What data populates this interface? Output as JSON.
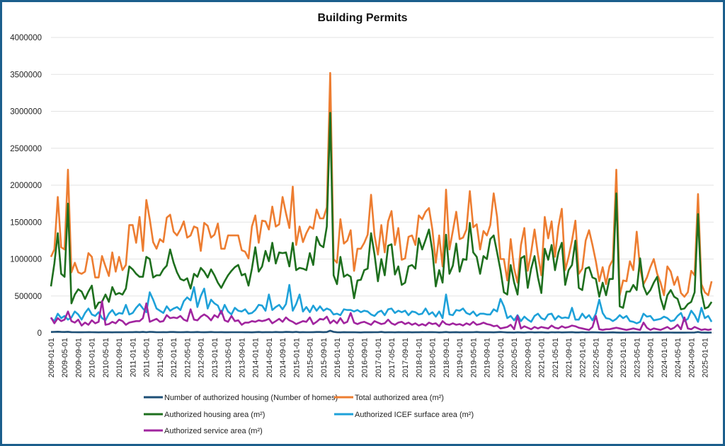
{
  "chart_data": {
    "type": "line",
    "title": "Building Permits",
    "xlabel": "",
    "ylabel": "",
    "frequency": "monthly",
    "x_range": [
      "2009-01-01",
      "2025-03-01"
    ],
    "ylim": [
      0,
      4000000
    ],
    "y_ticks": [
      "0",
      "500000",
      "1000000",
      "1500000",
      "2000000",
      "2500000",
      "3000000",
      "3500000",
      "4000000"
    ],
    "x_tick_labels": [
      "2009-01-01",
      "2009-05-01",
      "2009-09-01",
      "2010-01-01",
      "2010-05-01",
      "2010-09-01",
      "2011-01-01",
      "2011-05-01",
      "2011-09-01",
      "2012-01-01",
      "2012-05-01",
      "2012-09-01",
      "2013-01-01",
      "2013-05-01",
      "2013-09-01",
      "2014-01-01",
      "2014-05-01",
      "2014-09-01",
      "2015-01-01",
      "2015-05-01",
      "2015-09-01",
      "2016-01-01",
      "2016-05-01",
      "2016-09-01",
      "2017-01-01",
      "2017-05-01",
      "2017-09-01",
      "2018-01-01",
      "2018-05-01",
      "2018-09-01",
      "2019-01-01",
      "2019-05-01",
      "2019-09-01",
      "2020-01-01",
      "2020-05-01",
      "2020-09-01",
      "2021-01-01",
      "2021-05-01",
      "2021-09-01",
      "2022-01-01",
      "2022-05-01",
      "2022-09-01",
      "2023-01-01",
      "2023-05-01",
      "2023-09-01",
      "2024-01-01",
      "2024-05-01",
      "2024-09-01",
      "2025-01-01"
    ],
    "grid": true,
    "legend_position": "bottom",
    "series": [
      {
        "name": "Number of authorized housing (Number of homes)",
        "color": "#1d4f76",
        "values": [
          12000,
          14000,
          16000,
          13000,
          12000,
          15000,
          11000,
          10000,
          9000,
          9000,
          10000,
          11000,
          10000,
          9000,
          8000,
          9000,
          10000,
          9000,
          8000,
          10000,
          9000,
          9000,
          10000,
          11000,
          11000,
          12000,
          11000,
          13000,
          10000,
          14000,
          12000,
          10000,
          10000,
          11000,
          10000,
          12000,
          12000,
          11000,
          10000,
          11000,
          12000,
          10000,
          11000,
          12000,
          10000,
          9000,
          11000,
          12000,
          10000,
          10000,
          11000,
          9000,
          9000,
          10000,
          10000,
          10000,
          10000,
          9000,
          9000,
          8000,
          11000,
          12000,
          9000,
          11000,
          11000,
          10000,
          12000,
          11000,
          11000,
          13000,
          12000,
          11000,
          14000,
          9000,
          11000,
          10000,
          10000,
          11000,
          12000,
          12000,
          11000,
          12000,
          30000,
          14000,
          9000,
          8000,
          11000,
          9000,
          9000,
          10000,
          8000,
          7000,
          9000,
          9000,
          9000,
          10000,
          10000,
          13000,
          8000,
          9000,
          10000,
          8000,
          11000,
          9000,
          9000,
          11000,
          8000,
          9000,
          9000,
          11000,
          10000,
          11000,
          11000,
          10000,
          7000,
          9000,
          12000,
          8000,
          9000,
          11000,
          8000,
          10000,
          9000,
          9000,
          10000,
          12000,
          9000,
          10000,
          9000,
          9000,
          8000,
          11000,
          12000,
          10000,
          7000,
          7000,
          6000,
          9000,
          7000,
          6000,
          9000,
          10000,
          7000,
          8000,
          9000,
          7000,
          6000,
          10000,
          8000,
          10000,
          7000,
          8000,
          9000,
          11000,
          7000,
          7000,
          10000,
          7000,
          8000,
          9000,
          8000,
          7000,
          6000,
          5000,
          7000,
          8000,
          6000,
          4000,
          4000,
          5000,
          5000,
          6000,
          5000,
          5000,
          7000,
          6000,
          5000,
          5000,
          6000,
          6000,
          5000,
          6000,
          5000,
          4000,
          5000,
          4000,
          4000,
          5000,
          5000,
          6000,
          12000,
          5000,
          4000,
          4000,
          5000
        ]
      },
      {
        "name": "Total authorized area (m²)",
        "color": "#ed7d31",
        "values": [
          1030000,
          1130000,
          1840000,
          1160000,
          1130000,
          2210000,
          820000,
          950000,
          820000,
          800000,
          830000,
          1080000,
          1030000,
          750000,
          750000,
          1040000,
          900000,
          770000,
          1090000,
          830000,
          1030000,
          850000,
          920000,
          1460000,
          1460000,
          1220000,
          1570000,
          1110000,
          1800000,
          1540000,
          1230000,
          1140000,
          1270000,
          1230000,
          1560000,
          1600000,
          1370000,
          1320000,
          1400000,
          1510000,
          1290000,
          1320000,
          1440000,
          1420000,
          1110000,
          1490000,
          1450000,
          1290000,
          1330000,
          1480000,
          1140000,
          1140000,
          1320000,
          1320000,
          1320000,
          1320000,
          1120000,
          1100000,
          1010000,
          1440000,
          1590000,
          1220000,
          1520000,
          1510000,
          1400000,
          1710000,
          1440000,
          1470000,
          1840000,
          1620000,
          1420000,
          1980000,
          1190000,
          1440000,
          1230000,
          1350000,
          1440000,
          1410000,
          1670000,
          1550000,
          1550000,
          1700000,
          3520000,
          1000000,
          950000,
          1540000,
          1210000,
          1250000,
          1390000,
          840000,
          1140000,
          1140000,
          1220000,
          1330000,
          1870000,
          1320000,
          1060000,
          1460000,
          1090000,
          1510000,
          1650000,
          1190000,
          1420000,
          990000,
          1010000,
          1300000,
          1320000,
          1190000,
          1590000,
          1540000,
          1640000,
          1690000,
          1400000,
          950000,
          1320000,
          900000,
          1940000,
          1130000,
          1380000,
          1640000,
          1270000,
          1290000,
          1400000,
          1920000,
          1430000,
          1470000,
          1130000,
          1380000,
          1320000,
          1460000,
          1890000,
          1570000,
          1000000,
          1000000,
          710000,
          1270000,
          870000,
          680000,
          1190000,
          1420000,
          840000,
          1090000,
          1400000,
          1060000,
          780000,
          1570000,
          1280000,
          1510000,
          1030000,
          1440000,
          1680000,
          850000,
          1030000,
          1250000,
          1520000,
          800000,
          870000,
          1250000,
          1390000,
          1190000,
          970000,
          700000,
          890000,
          660000,
          900000,
          990000,
          2210000,
          510000,
          710000,
          700000,
          970000,
          850000,
          1370000,
          870000,
          660000,
          750000,
          890000,
          1000000,
          800000,
          680000,
          510000,
          900000,
          830000,
          650000,
          760000,
          540000,
          490000,
          550000,
          840000,
          780000,
          1880000,
          660000,
          550000,
          510000,
          700000
        ]
      },
      {
        "name": "Authorized housing area (m²)",
        "color": "#1e6f1e",
        "values": [
          630000,
          940000,
          1350000,
          800000,
          760000,
          1750000,
          400000,
          520000,
          590000,
          560000,
          460000,
          560000,
          640000,
          330000,
          410000,
          420000,
          520000,
          420000,
          620000,
          520000,
          540000,
          520000,
          600000,
          900000,
          860000,
          800000,
          760000,
          760000,
          1030000,
          1000000,
          750000,
          780000,
          780000,
          860000,
          910000,
          1130000,
          950000,
          820000,
          730000,
          710000,
          740000,
          600000,
          800000,
          760000,
          880000,
          830000,
          750000,
          860000,
          780000,
          680000,
          610000,
          700000,
          780000,
          840000,
          890000,
          920000,
          780000,
          800000,
          640000,
          870000,
          1160000,
          830000,
          900000,
          1110000,
          970000,
          1220000,
          940000,
          1090000,
          1080000,
          1090000,
          900000,
          1220000,
          850000,
          880000,
          870000,
          850000,
          1080000,
          920000,
          1300000,
          1190000,
          1160000,
          1440000,
          2980000,
          780000,
          660000,
          1030000,
          760000,
          790000,
          760000,
          470000,
          710000,
          720000,
          850000,
          870000,
          1350000,
          1060000,
          700000,
          1000000,
          780000,
          1180000,
          1200000,
          790000,
          900000,
          650000,
          680000,
          900000,
          920000,
          870000,
          1280000,
          1130000,
          1260000,
          1400000,
          1110000,
          630000,
          850000,
          680000,
          1330000,
          800000,
          910000,
          1210000,
          830000,
          1000000,
          990000,
          1490000,
          1090000,
          1030000,
          800000,
          1040000,
          1000000,
          1270000,
          1320000,
          1090000,
          850000,
          550000,
          520000,
          920000,
          680000,
          520000,
          1010000,
          1040000,
          610000,
          870000,
          1040000,
          750000,
          540000,
          1140000,
          990000,
          1190000,
          850000,
          1090000,
          1220000,
          650000,
          850000,
          920000,
          1250000,
          610000,
          580000,
          870000,
          890000,
          750000,
          730000,
          490000,
          680000,
          510000,
          730000,
          730000,
          1890000,
          360000,
          340000,
          560000,
          560000,
          650000,
          580000,
          1010000,
          630000,
          520000,
          580000,
          680000,
          760000,
          470000,
          320000,
          510000,
          580000,
          490000,
          460000,
          320000,
          330000,
          390000,
          420000,
          550000,
          1610000,
          550000,
          330000,
          350000,
          420000
        ]
      },
      {
        "name": "Authorized ICEF surface area (m²)",
        "color": "#1ea1d9",
        "values": [
          200000,
          160000,
          260000,
          200000,
          230000,
          180000,
          210000,
          290000,
          250000,
          180000,
          270000,
          330000,
          250000,
          230000,
          280000,
          200000,
          170000,
          260000,
          310000,
          240000,
          270000,
          260000,
          380000,
          250000,
          270000,
          340000,
          390000,
          330000,
          280000,
          550000,
          450000,
          330000,
          300000,
          270000,
          360000,
          300000,
          330000,
          350000,
          310000,
          430000,
          480000,
          440000,
          620000,
          350000,
          500000,
          600000,
          330000,
          450000,
          400000,
          370000,
          260000,
          380000,
          290000,
          250000,
          340000,
          300000,
          290000,
          320000,
          260000,
          270000,
          310000,
          380000,
          370000,
          300000,
          520000,
          310000,
          350000,
          380000,
          320000,
          390000,
          650000,
          300000,
          390000,
          520000,
          290000,
          350000,
          280000,
          370000,
          300000,
          360000,
          300000,
          330000,
          310000,
          250000,
          260000,
          240000,
          320000,
          310000,
          310000,
          290000,
          310000,
          280000,
          300000,
          290000,
          250000,
          230000,
          280000,
          300000,
          240000,
          320000,
          330000,
          270000,
          300000,
          280000,
          300000,
          240000,
          290000,
          280000,
          250000,
          260000,
          330000,
          250000,
          280000,
          220000,
          290000,
          200000,
          520000,
          250000,
          240000,
          310000,
          300000,
          330000,
          270000,
          250000,
          290000,
          230000,
          260000,
          260000,
          250000,
          250000,
          320000,
          290000,
          460000,
          360000,
          200000,
          230000,
          170000,
          240000,
          160000,
          220000,
          180000,
          150000,
          230000,
          260000,
          200000,
          180000,
          250000,
          260000,
          180000,
          230000,
          200000,
          210000,
          200000,
          340000,
          180000,
          180000,
          260000,
          200000,
          240000,
          170000,
          260000,
          450000,
          270000,
          200000,
          190000,
          160000,
          190000,
          240000,
          200000,
          230000,
          160000,
          150000,
          130000,
          150000,
          260000,
          220000,
          230000,
          170000,
          180000,
          190000,
          220000,
          200000,
          160000,
          170000,
          230000,
          270000,
          160000,
          190000,
          300000,
          240000,
          150000,
          340000,
          200000,
          230000,
          150000
        ]
      },
      {
        "name": "Authorized service area (m²)",
        "color": "#a1259f",
        "values": [
          210000,
          130000,
          200000,
          160000,
          180000,
          290000,
          160000,
          140000,
          180000,
          100000,
          140000,
          110000,
          170000,
          130000,
          150000,
          430000,
          110000,
          120000,
          150000,
          130000,
          180000,
          160000,
          110000,
          140000,
          150000,
          160000,
          160000,
          200000,
          400000,
          150000,
          170000,
          190000,
          150000,
          160000,
          240000,
          200000,
          210000,
          200000,
          230000,
          180000,
          160000,
          320000,
          180000,
          170000,
          220000,
          250000,
          220000,
          170000,
          240000,
          210000,
          300000,
          170000,
          150000,
          230000,
          160000,
          170000,
          110000,
          140000,
          140000,
          160000,
          150000,
          170000,
          160000,
          170000,
          190000,
          130000,
          160000,
          190000,
          150000,
          210000,
          170000,
          150000,
          120000,
          140000,
          160000,
          150000,
          210000,
          120000,
          150000,
          190000,
          180000,
          220000,
          130000,
          170000,
          130000,
          200000,
          130000,
          150000,
          270000,
          140000,
          120000,
          140000,
          150000,
          130000,
          110000,
          160000,
          140000,
          120000,
          130000,
          180000,
          130000,
          110000,
          140000,
          150000,
          120000,
          140000,
          110000,
          130000,
          100000,
          120000,
          100000,
          140000,
          120000,
          130000,
          90000,
          160000,
          120000,
          110000,
          130000,
          110000,
          120000,
          100000,
          130000,
          110000,
          150000,
          110000,
          120000,
          140000,
          120000,
          110000,
          90000,
          100000,
          60000,
          70000,
          80000,
          110000,
          50000,
          230000,
          60000,
          90000,
          70000,
          50000,
          80000,
          60000,
          80000,
          70000,
          60000,
          100000,
          70000,
          60000,
          90000,
          70000,
          80000,
          100000,
          90000,
          70000,
          60000,
          50000,
          40000,
          80000,
          230000,
          50000,
          40000,
          50000,
          50000,
          60000,
          70000,
          60000,
          50000,
          40000,
          50000,
          60000,
          50000,
          40000,
          140000,
          70000,
          40000,
          60000,
          50000,
          40000,
          60000,
          80000,
          50000,
          70000,
          110000,
          50000,
          210000,
          60000,
          50000,
          80000,
          60000,
          40000,
          50000,
          40000,
          50000
        ]
      }
    ]
  }
}
